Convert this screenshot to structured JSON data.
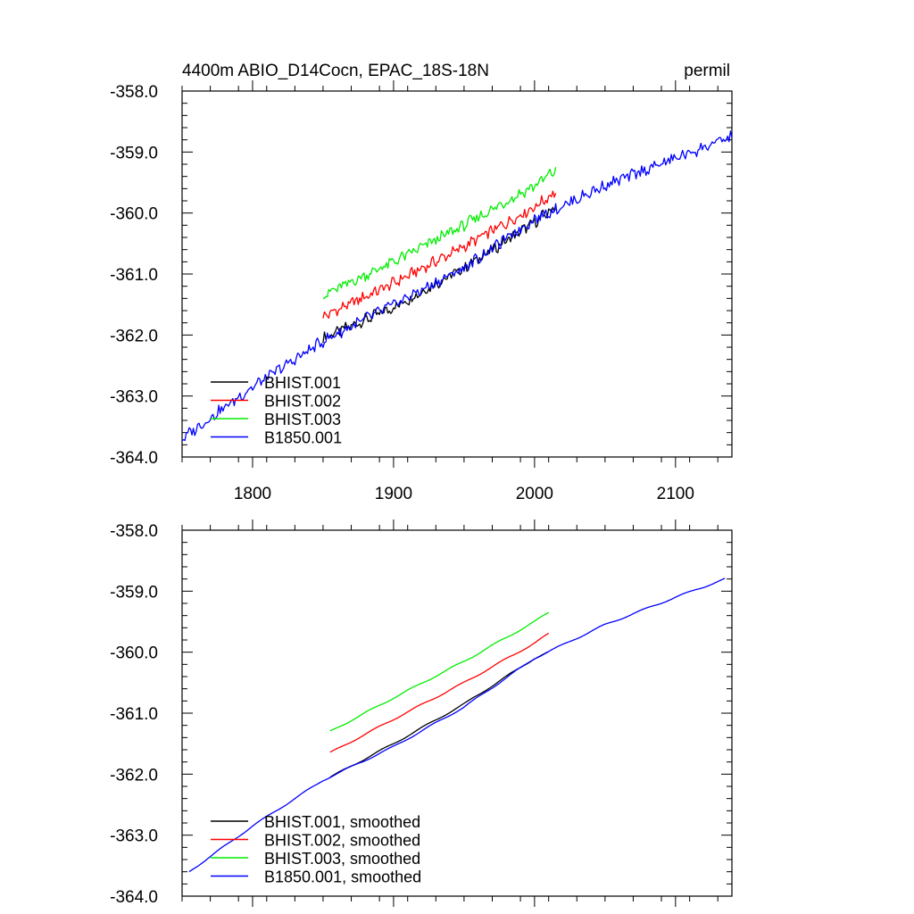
{
  "chart_data": [
    {
      "type": "line",
      "title": "4400m ABIO_D14Cocn, EPAC_18S-18N",
      "units": "permil",
      "xlim": [
        1750,
        2140
      ],
      "ylim": [
        -364.0,
        -358.0
      ],
      "xticks": [
        1800,
        1900,
        2000,
        2100
      ],
      "xtick_labels": [
        "1800",
        "1900",
        "2000",
        "2100"
      ],
      "yticks": [
        -364.0,
        -363.0,
        -362.0,
        -361.0,
        -360.0,
        -359.0,
        -358.0
      ],
      "ytick_labels": [
        "-364.0",
        "-363.0",
        "-362.0",
        "-361.0",
        "-360.0",
        "-359.0",
        "-358.0"
      ],
      "legend_position": "bottom-left",
      "series": [
        {
          "name": "BHIST.001",
          "color": "#000000",
          "noisy": true,
          "x": [
            1850,
            1900,
            1950,
            2000,
            2015
          ],
          "y": [
            -362.05,
            -361.55,
            -360.9,
            -360.15,
            -359.9
          ]
        },
        {
          "name": "BHIST.002",
          "color": "#ff0000",
          "noisy": true,
          "x": [
            1850,
            1900,
            1950,
            2000,
            2015
          ],
          "y": [
            -361.7,
            -361.15,
            -360.55,
            -359.9,
            -359.65
          ]
        },
        {
          "name": "BHIST.003",
          "color": "#00ee00",
          "noisy": true,
          "x": [
            1850,
            1900,
            1950,
            2000,
            2015
          ],
          "y": [
            -361.35,
            -360.8,
            -360.2,
            -359.55,
            -359.3
          ]
        },
        {
          "name": "B1850.001",
          "color": "#0000ff",
          "noisy": true,
          "x": [
            1750,
            1800,
            1850,
            1900,
            1950,
            2000,
            2050,
            2100,
            2140
          ],
          "y": [
            -363.7,
            -362.85,
            -362.1,
            -361.5,
            -360.9,
            -360.1,
            -359.55,
            -359.1,
            -358.75
          ]
        }
      ]
    },
    {
      "type": "line",
      "title": "",
      "units": "",
      "xlim": [
        1750,
        2140
      ],
      "ylim": [
        -364.0,
        -358.0
      ],
      "xticks": [
        1800,
        1900,
        2000,
        2100
      ],
      "xtick_labels": [],
      "yticks": [
        -364.0,
        -363.0,
        -362.0,
        -361.0,
        -360.0,
        -359.0,
        -358.0
      ],
      "ytick_labels": [
        "-364.0",
        "-363.0",
        "-362.0",
        "-361.0",
        "-360.0",
        "-359.0",
        "-358.0"
      ],
      "legend_position": "bottom-left",
      "series": [
        {
          "name": "BHIST.001, smoothed",
          "color": "#000000",
          "noisy": false,
          "x": [
            1855,
            1900,
            1950,
            2000,
            2010
          ],
          "y": [
            -362.05,
            -361.5,
            -360.85,
            -360.1,
            -360.0
          ]
        },
        {
          "name": "BHIST.002, smoothed",
          "color": "#ff0000",
          "noisy": false,
          "x": [
            1855,
            1900,
            1950,
            2000,
            2010
          ],
          "y": [
            -361.65,
            -361.1,
            -360.5,
            -359.85,
            -359.7
          ]
        },
        {
          "name": "BHIST.003, smoothed",
          "color": "#00ee00",
          "noisy": false,
          "x": [
            1855,
            1900,
            1950,
            2000,
            2010
          ],
          "y": [
            -361.3,
            -360.75,
            -360.15,
            -359.5,
            -359.35
          ]
        },
        {
          "name": "B1850.001, smoothed",
          "color": "#0000ff",
          "noisy": false,
          "x": [
            1755,
            1800,
            1850,
            1900,
            1950,
            2000,
            2050,
            2100,
            2135
          ],
          "y": [
            -363.6,
            -362.85,
            -362.1,
            -361.55,
            -360.9,
            -360.1,
            -359.55,
            -359.1,
            -358.8
          ]
        }
      ]
    }
  ]
}
